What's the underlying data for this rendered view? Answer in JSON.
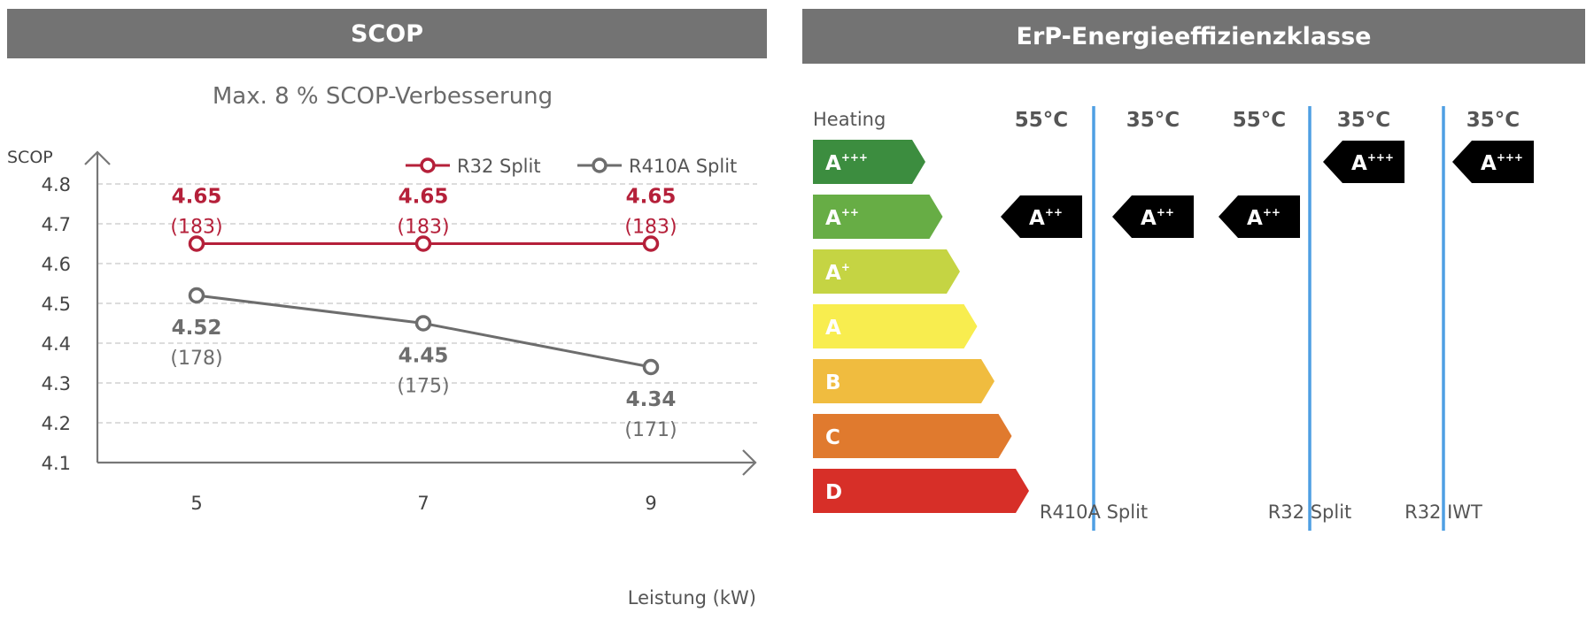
{
  "left_panel": {
    "header": "SCOP"
  },
  "right_panel": {
    "header": "ErP-Energieeffizienzklasse"
  },
  "chart_data": {
    "type": "line",
    "title": "",
    "subtitle": "Max. 8 % SCOP-Verbesserung",
    "ylabel": "SCOP",
    "xlabel": "Leistung (kW)",
    "categories": [
      "5",
      "7",
      "9"
    ],
    "ylim": [
      4.1,
      4.8
    ],
    "yticks": [
      "4.8",
      "4.7",
      "4.6",
      "4.5",
      "4.4",
      "4.3",
      "4.2",
      "4.1"
    ],
    "grid": true,
    "legend_position": "top-right",
    "series": [
      {
        "name": "R32 Split",
        "color": "#b5203a",
        "values": [
          4.65,
          4.65,
          4.65
        ],
        "labels": [
          "4.65",
          "4.65",
          "4.65"
        ],
        "sublabels": [
          "(183)",
          "(183)",
          "(183)"
        ]
      },
      {
        "name": "R410A Split",
        "color": "#6d6d6d",
        "values": [
          4.52,
          4.45,
          4.34
        ],
        "labels": [
          "4.52",
          "4.45",
          "4.34"
        ],
        "sublabels": [
          "(178)",
          "(175)",
          "(171)"
        ]
      }
    ]
  },
  "erp": {
    "heating_label": "Heating",
    "scale": [
      {
        "label": "A",
        "sup": "+++",
        "color": "#3c8d3f"
      },
      {
        "label": "A",
        "sup": "++",
        "color": "#67ad45"
      },
      {
        "label": "A",
        "sup": "+",
        "color": "#c5d443"
      },
      {
        "label": "A",
        "sup": "",
        "color": "#f8ed4f"
      },
      {
        "label": "B",
        "sup": "",
        "color": "#f0bc3f"
      },
      {
        "label": "C",
        "sup": "",
        "color": "#e07a2e"
      },
      {
        "label": "D",
        "sup": "",
        "color": "#d72f28"
      }
    ],
    "columns": [
      {
        "temp": "55°C",
        "rating_label": "A",
        "rating_sup": "++",
        "row": 1
      },
      {
        "temp": "35°C",
        "rating_label": "A",
        "rating_sup": "++",
        "row": 1
      },
      {
        "temp": "55°C",
        "rating_label": "A",
        "rating_sup": "++",
        "row": 1
      },
      {
        "temp": "35°C",
        "rating_label": "A",
        "rating_sup": "+++",
        "row": 0
      },
      {
        "temp": "35°C",
        "rating_label": "A",
        "rating_sup": "+++",
        "row": 0
      }
    ],
    "groups": [
      "R410A Split",
      "R32 Split",
      "R32 IWT"
    ],
    "divider_color": "#4f9fe3"
  }
}
